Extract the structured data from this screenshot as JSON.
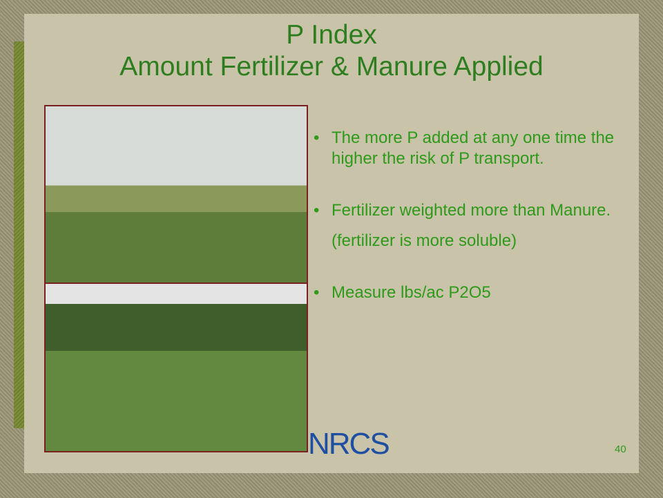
{
  "title": {
    "line1": "P Index",
    "line2": "Amount Fertilizer & Manure Applied"
  },
  "bullets": [
    {
      "text": "The more P added at any one time the higher the risk of P transport."
    },
    {
      "text": "Fertilizer weighted more than Manure.",
      "note": "(fertilizer is more soluble)"
    },
    {
      "text": "Measure lbs/ac P2O5"
    }
  ],
  "logo": "NRCS",
  "page_number": "40"
}
